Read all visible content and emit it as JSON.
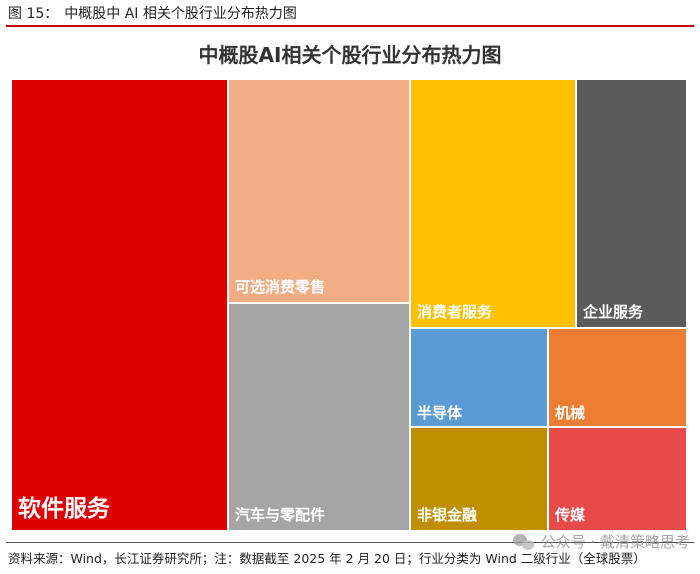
{
  "figure": {
    "number_label": "图 15：",
    "title": "中概股中 AI 相关个股行业分布热力图"
  },
  "chart_data": {
    "type": "treemap",
    "title": "中概股AI相关个股行业分布热力图",
    "categories": [
      "软件服务",
      "可选消费零售",
      "汽车与零配件",
      "消费者服务",
      "企业服务",
      "半导体",
      "机械",
      "非银金融",
      "传媒"
    ],
    "colors": [
      "#df0000",
      "#f2ad84",
      "#a5a5a5",
      "#ffc000",
      "#5b5b5b",
      "#5b9bd5",
      "#ed7d31",
      "#bf8f00",
      "#e84a4a"
    ],
    "relative_sizes": [
      113,
      56,
      56,
      49,
      23,
      12,
      12,
      12,
      12
    ]
  },
  "footer": {
    "source": "资料来源：Wind，长江证券研究所；注：数据截至 2025 年 2 月 20 日；行业分类为 Wind 二级行业（全球股票）"
  },
  "watermark": {
    "text": "公众号 · 戴清策略思考"
  }
}
